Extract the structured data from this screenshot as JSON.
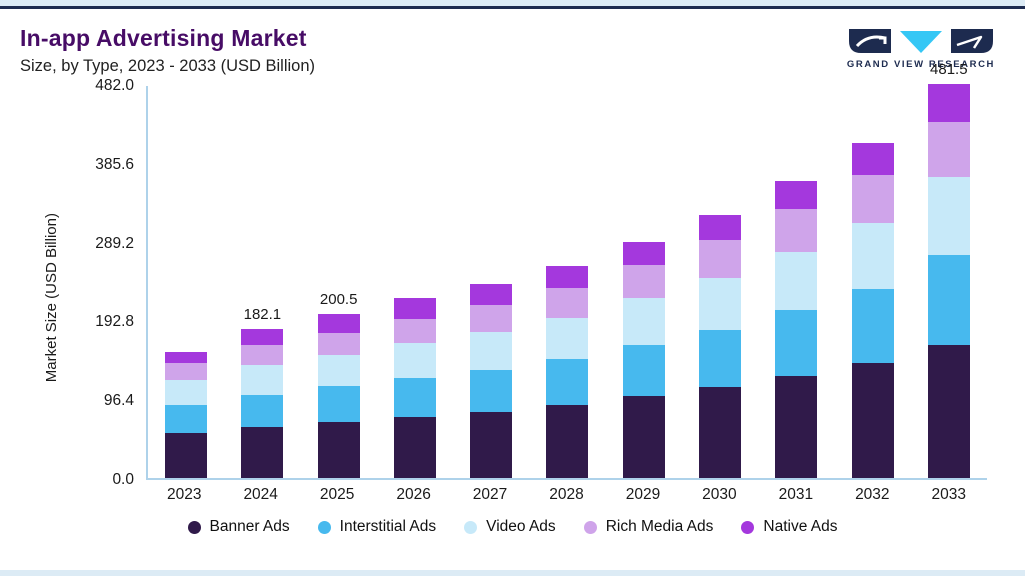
{
  "header": {
    "title": "In-app Advertising Market",
    "subtitle": "Size, by Type, 2023 - 2033 (USD Billion)",
    "logo_text": "GRAND VIEW RESEARCH"
  },
  "chart_data": {
    "type": "bar",
    "stacked": true,
    "title": "In-app Advertising Market Size, by Type, 2023 - 2033 (USD Billion)",
    "ylabel": "Market Size (USD Billion)",
    "ylim": [
      0,
      482.0
    ],
    "yticks": [
      0.0,
      96.4,
      192.8,
      289.2,
      385.6,
      482.0
    ],
    "grid": false,
    "legend_position": "bottom",
    "categories": [
      "2023",
      "2024",
      "2025",
      "2026",
      "2027",
      "2028",
      "2029",
      "2030",
      "2031",
      "2032",
      "2033"
    ],
    "series": [
      {
        "name": "Banner Ads",
        "color": "#301a4a",
        "values": [
          55,
          63,
          69,
          75,
          81,
          89,
          100,
          111,
          125,
          141,
          163
        ]
      },
      {
        "name": "Interstitial Ads",
        "color": "#47b9ee",
        "values": [
          34,
          39,
          43,
          47,
          51,
          56,
          63,
          70,
          80,
          90,
          110
        ]
      },
      {
        "name": "Video Ads",
        "color": "#c7e9f9",
        "values": [
          31,
          36,
          39,
          43,
          47,
          51,
          57,
          64,
          72,
          81,
          95
        ]
      },
      {
        "name": "Rich Media Ads",
        "color": "#cfa4ea",
        "values": [
          21,
          25,
          27,
          30,
          33,
          36,
          41,
          46,
          52,
          59,
          68
        ]
      },
      {
        "name": "Native Ads",
        "color": "#a438dd",
        "values": [
          13,
          19.1,
          22.5,
          25,
          25,
          27,
          28,
          31,
          34,
          39,
          45.5
        ]
      }
    ],
    "bar_labels": {
      "2024": "182.1",
      "2025": "200.5",
      "2033": "481.5"
    }
  },
  "colors": {
    "accent_top_bar": "#1d2b4f",
    "page_background": "#dcebf5",
    "title_text": "#470c66",
    "axis_line": "#aed2ea",
    "logo_navy": "#1d2b4f",
    "logo_cyan": "#35c7f5"
  }
}
